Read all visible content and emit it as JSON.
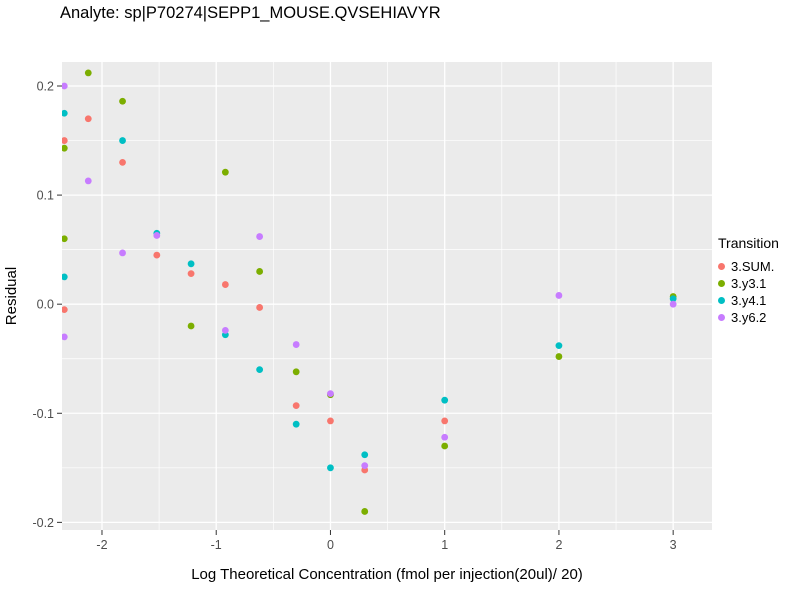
{
  "chart_data": {
    "type": "scatter",
    "title": "Analyte: sp|P70274|SEPP1_MOUSE.QVSEHIAVYR",
    "xlabel": "Log Theoretical Concentration (fmol per injection(20ul)/ 20)",
    "ylabel": "Residual",
    "legend_title": "Transition",
    "legend_position": "right",
    "grid": true,
    "panel_bg": "#EBEBEB",
    "grid_color": "#FFFFFF",
    "tick_label_color": "#4D4D4D",
    "xlim": [
      -2.35,
      3.34
    ],
    "ylim": [
      -0.207,
      0.222
    ],
    "xtick_values": [
      -2,
      -1,
      0,
      1,
      2,
      3
    ],
    "xtick_labels": [
      "-2",
      "-1",
      "0",
      "1",
      "2",
      "3"
    ],
    "ytick_values": [
      -0.2,
      -0.1,
      0.0,
      0.1,
      0.2
    ],
    "ytick_labels": [
      "-0.2",
      "-0.1",
      "0.0",
      "0.1",
      "0.2"
    ],
    "x_minor": [
      -1.5,
      -0.5,
      0.5,
      1.5,
      2.5
    ],
    "y_minor": [
      -0.15,
      -0.05,
      0.05,
      0.15
    ],
    "series": [
      {
        "name": "3.SUM.",
        "color": "#F8766D",
        "points": [
          [
            -2.33,
            0.15
          ],
          [
            -2.33,
            -0.005
          ],
          [
            -2.12,
            0.17
          ],
          [
            -1.82,
            0.13
          ],
          [
            -1.52,
            0.045
          ],
          [
            -1.22,
            0.028
          ],
          [
            -0.92,
            0.018
          ],
          [
            -0.62,
            -0.003
          ],
          [
            -0.3,
            -0.093
          ],
          [
            0.0,
            -0.107
          ],
          [
            0.3,
            -0.152
          ],
          [
            1.0,
            -0.107
          ]
        ]
      },
      {
        "name": "3.y3.1",
        "color": "#7CAE00",
        "points": [
          [
            -2.33,
            0.143
          ],
          [
            -2.33,
            0.06
          ],
          [
            -2.12,
            0.212
          ],
          [
            -1.82,
            0.186
          ],
          [
            -1.22,
            -0.02
          ],
          [
            -0.92,
            0.121
          ],
          [
            -0.62,
            0.03
          ],
          [
            -0.3,
            -0.062
          ],
          [
            0.0,
            -0.083
          ],
          [
            0.3,
            -0.19
          ],
          [
            1.0,
            -0.13
          ],
          [
            2.0,
            -0.048
          ],
          [
            3.0,
            0.007
          ]
        ]
      },
      {
        "name": "3.y4.1",
        "color": "#00BFC4",
        "points": [
          [
            -2.33,
            0.175
          ],
          [
            -2.33,
            0.025
          ],
          [
            -1.82,
            0.15
          ],
          [
            -1.52,
            0.065
          ],
          [
            -1.22,
            0.037
          ],
          [
            -0.92,
            -0.028
          ],
          [
            -0.62,
            -0.06
          ],
          [
            -0.3,
            -0.11
          ],
          [
            0.0,
            -0.15
          ],
          [
            0.3,
            -0.138
          ],
          [
            1.0,
            -0.088
          ],
          [
            2.0,
            -0.038
          ],
          [
            3.0,
            0.005
          ]
        ]
      },
      {
        "name": "3.y6.2",
        "color": "#C77CFF",
        "points": [
          [
            -2.33,
            0.2
          ],
          [
            -2.33,
            -0.03
          ],
          [
            -2.12,
            0.113
          ],
          [
            -1.82,
            0.047
          ],
          [
            -1.52,
            0.063
          ],
          [
            -0.92,
            -0.024
          ],
          [
            -0.62,
            0.062
          ],
          [
            -0.3,
            -0.037
          ],
          [
            0.0,
            -0.082
          ],
          [
            0.3,
            -0.148
          ],
          [
            1.0,
            -0.122
          ],
          [
            2.0,
            0.008
          ],
          [
            3.0,
            0.0
          ]
        ]
      }
    ]
  }
}
